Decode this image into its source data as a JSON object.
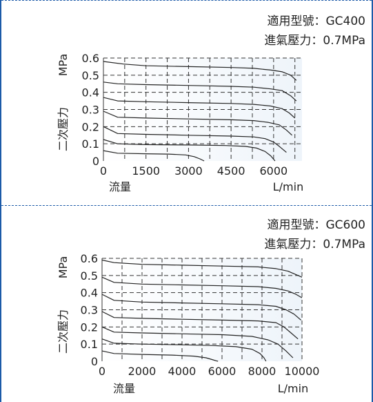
{
  "colors": {
    "frame": "#1b5aa8",
    "plot_bg": "#eef4fa",
    "curve": "#222222",
    "grid": "#333333"
  },
  "chart_data": [
    {
      "type": "line",
      "title": "",
      "model_label": "適用型號：GC400",
      "pressure_label": "進氣壓力：0.7MPa",
      "xlabel": "流量",
      "xunit": "L/min",
      "ylabel": "二次壓力",
      "yunit": "MPa",
      "xlim": [
        0,
        7000
      ],
      "ylim": [
        0,
        0.6
      ],
      "xticks": [
        0,
        1500,
        3000,
        4500,
        6000
      ],
      "xtick_labels": [
        "0",
        "1500",
        "3000",
        "4500",
        "6000"
      ],
      "yticks": [
        0,
        0.1,
        0.2,
        0.3,
        0.4,
        0.5,
        0.6
      ],
      "ytick_labels": [
        "0",
        "0.1",
        "0.2",
        "0.3",
        "0.4",
        "0.5",
        "0.6"
      ],
      "xgrid": [
        0,
        750,
        1500,
        2250,
        3000,
        3750,
        4500,
        5250,
        6000,
        6750
      ],
      "grid": true,
      "series": [
        {
          "x": [
            0,
            700,
            1500,
            3000,
            4500,
            5300,
            5900,
            6300,
            6600,
            6800
          ],
          "y": [
            0.58,
            0.565,
            0.555,
            0.55,
            0.545,
            0.54,
            0.53,
            0.52,
            0.5,
            0.47
          ]
        },
        {
          "x": [
            0,
            500,
            1500,
            3000,
            4500,
            5300,
            5900,
            6300,
            6600,
            6800
          ],
          "y": [
            0.46,
            0.45,
            0.445,
            0.44,
            0.435,
            0.43,
            0.42,
            0.41,
            0.38,
            0.35
          ]
        },
        {
          "x": [
            0,
            500,
            1500,
            3000,
            4500,
            5300,
            5900,
            6300,
            6550,
            6750
          ],
          "y": [
            0.37,
            0.35,
            0.345,
            0.34,
            0.335,
            0.33,
            0.32,
            0.305,
            0.28,
            0.25
          ]
        },
        {
          "x": [
            0,
            500,
            1500,
            3000,
            4500,
            5300,
            5800,
            6200,
            6450,
            6650
          ],
          "y": [
            0.29,
            0.255,
            0.25,
            0.245,
            0.24,
            0.235,
            0.225,
            0.21,
            0.18,
            0.15
          ]
        },
        {
          "x": [
            0,
            500,
            1500,
            3000,
            4500,
            5300,
            5700,
            6000,
            6200,
            6450
          ],
          "y": [
            0.2,
            0.16,
            0.155,
            0.15,
            0.145,
            0.14,
            0.13,
            0.11,
            0.085,
            0.05
          ]
        },
        {
          "x": [
            0,
            500,
            1500,
            3000,
            4300,
            5000,
            5400,
            5700,
            5900,
            6050
          ],
          "y": [
            0.125,
            0.1,
            0.095,
            0.093,
            0.09,
            0.085,
            0.075,
            0.055,
            0.03,
            0.0
          ]
        },
        {
          "x": [
            0,
            500,
            1500,
            2300,
            2900,
            3200,
            3400,
            3550
          ],
          "y": [
            0.06,
            0.045,
            0.042,
            0.04,
            0.035,
            0.025,
            0.012,
            0.0
          ]
        }
      ]
    },
    {
      "type": "line",
      "title": "",
      "model_label": "適用型號：GC600",
      "pressure_label": "進氣壓力：0.7MPa",
      "xlabel": "流量",
      "xunit": "L/min",
      "ylabel": "二次壓力",
      "yunit": "MPa",
      "xlim": [
        0,
        10000
      ],
      "ylim": [
        0,
        0.6
      ],
      "xticks": [
        0,
        2000,
        4000,
        6000,
        8000,
        10000
      ],
      "xtick_labels": [
        "0",
        "2000",
        "4000",
        "6000",
        "8000",
        "10000"
      ],
      "yticks": [
        0,
        0.1,
        0.2,
        0.3,
        0.4,
        0.5,
        0.6
      ],
      "ytick_labels": [
        "0",
        "0.1",
        "0.2",
        "0.3",
        "0.4",
        "0.5",
        "0.6"
      ],
      "xgrid": [
        0,
        1000,
        2000,
        3000,
        4000,
        5000,
        6000,
        7000,
        8000,
        9000,
        10000
      ],
      "grid": true,
      "series": [
        {
          "x": [
            0,
            600,
            2000,
            4000,
            6000,
            7800,
            8700,
            9300,
            9700,
            10000
          ],
          "y": [
            0.59,
            0.575,
            0.565,
            0.56,
            0.555,
            0.55,
            0.54,
            0.525,
            0.505,
            0.49
          ]
        },
        {
          "x": [
            0,
            600,
            2000,
            4000,
            6000,
            7800,
            8700,
            9300,
            9700,
            10000
          ],
          "y": [
            0.49,
            0.46,
            0.45,
            0.445,
            0.44,
            0.435,
            0.425,
            0.41,
            0.39,
            0.37
          ]
        },
        {
          "x": [
            0,
            600,
            2000,
            4000,
            6000,
            7800,
            8700,
            9200,
            9600,
            9950
          ],
          "y": [
            0.39,
            0.355,
            0.345,
            0.34,
            0.335,
            0.33,
            0.32,
            0.3,
            0.275,
            0.24
          ]
        },
        {
          "x": [
            0,
            600,
            2000,
            4000,
            6000,
            7800,
            8700,
            9100,
            9450,
            9800
          ],
          "y": [
            0.29,
            0.255,
            0.25,
            0.245,
            0.24,
            0.235,
            0.225,
            0.2,
            0.165,
            0.13
          ]
        },
        {
          "x": [
            0,
            600,
            2000,
            4000,
            6000,
            7500,
            8300,
            8800,
            9200,
            9550
          ],
          "y": [
            0.2,
            0.17,
            0.165,
            0.16,
            0.155,
            0.145,
            0.125,
            0.1,
            0.06,
            0.02
          ]
        },
        {
          "x": [
            0,
            600,
            2000,
            4000,
            5500,
            6700,
            7500,
            7900,
            8100,
            8200
          ],
          "y": [
            0.13,
            0.105,
            0.1,
            0.096,
            0.092,
            0.085,
            0.07,
            0.045,
            0.02,
            0.0
          ]
        },
        {
          "x": [
            0,
            600,
            2000,
            3500,
            4600,
            5200,
            5500,
            5700,
            5800
          ],
          "y": [
            0.06,
            0.045,
            0.04,
            0.036,
            0.03,
            0.02,
            0.01,
            0.003,
            0.0
          ]
        }
      ]
    }
  ]
}
